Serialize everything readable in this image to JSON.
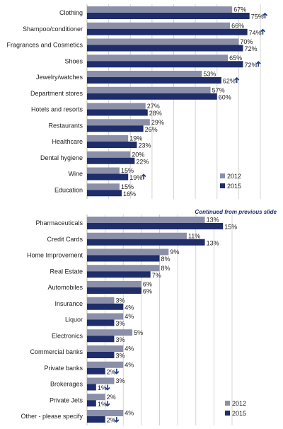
{
  "colors": {
    "y2012": "#8b8fa8",
    "y2015": "#1f2d6b",
    "grid": "#d4d4d4",
    "arrow": "#1f3f8f"
  },
  "chart_data": [
    {
      "type": "bar",
      "orientation": "horizontal",
      "categories": [
        "Clothing",
        "Shampoo/conditioner",
        "Fragrances and Cosmetics",
        "Shoes",
        "Jewelry/watches",
        "Department stores",
        "Hotels and resorts",
        "Restaurants",
        "Healthcare",
        "Dental hygiene",
        "Wine",
        "Education"
      ],
      "series": [
        {
          "name": "2012",
          "values": [
            67,
            66,
            70,
            65,
            53,
            57,
            27,
            29,
            19,
            20,
            15,
            15
          ]
        },
        {
          "name": "2015",
          "values": [
            75,
            74,
            72,
            72,
            62,
            60,
            28,
            26,
            23,
            22,
            19,
            16
          ]
        }
      ],
      "labels_2012": [
        "67%",
        "66%",
        "70%",
        "65%",
        "53%",
        "57%",
        "27%",
        "29%",
        "19%",
        "20%",
        "15%",
        "15%"
      ],
      "labels_2015": [
        "75%",
        "74%",
        "72%",
        "72%",
        "62%",
        "60%",
        "28%",
        "26%",
        "23%",
        "22%",
        "19%",
        "16%"
      ],
      "arrows": [
        "up",
        "up",
        "",
        "up",
        "up",
        "",
        "",
        "",
        "",
        "",
        "up",
        ""
      ],
      "xlim": [
        0,
        80
      ],
      "grid": true,
      "legend": [
        "2012",
        "2015"
      ],
      "legend_position": "bottom-right",
      "note": ""
    },
    {
      "type": "bar",
      "orientation": "horizontal",
      "categories": [
        "Pharmaceuticals",
        "Credit Cards",
        "Home Improvement",
        "Real Estate",
        "Automobiles",
        "Insurance",
        "Liquor",
        "Electronics",
        "Commercial banks",
        "Private banks",
        "Brokerages",
        "Private Jets",
        "Other - please specify"
      ],
      "series": [
        {
          "name": "2012",
          "values": [
            13,
            11,
            9,
            8,
            6,
            3,
            4,
            5,
            4,
            4,
            3,
            2,
            4
          ]
        },
        {
          "name": "2015",
          "values": [
            15,
            13,
            8,
            7,
            6,
            4,
            3,
            3,
            3,
            2,
            1,
            1,
            2
          ]
        }
      ],
      "labels_2012": [
        "13%",
        "11%",
        "9%",
        "8%",
        "6%",
        "3%",
        "4%",
        "5%",
        "4%",
        "4%",
        "3%",
        "2%",
        "4%"
      ],
      "labels_2015": [
        "15%",
        "13%",
        "8%",
        "7%",
        "6%",
        "4%",
        "3%",
        "3%",
        "3%",
        "2%",
        "1%",
        "1%",
        "2%"
      ],
      "arrows": [
        "",
        "",
        "",
        "",
        "",
        "",
        "",
        "",
        "",
        "down",
        "down",
        "down",
        "down"
      ],
      "xlim": [
        0,
        16
      ],
      "grid": true,
      "legend": [
        "2012",
        "2015"
      ],
      "legend_position": "bottom-right",
      "note": "Continued from previous slide"
    }
  ]
}
